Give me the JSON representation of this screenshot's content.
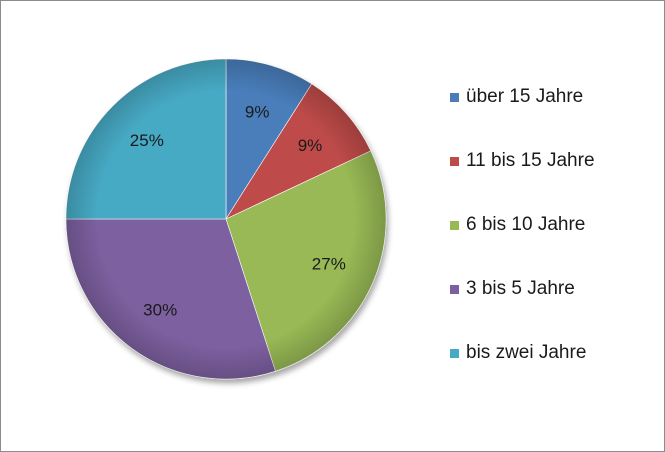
{
  "chart_data": {
    "type": "pie",
    "title": "",
    "start": "12 o'clock",
    "direction": "clockwise",
    "legend_position": "right",
    "slices": [
      {
        "label": "über 15 Jahre",
        "value": 9,
        "value_label": "9%",
        "color": "#4a7ebb"
      },
      {
        "label": "11 bis 15 Jahre",
        "value": 9,
        "value_label": "9%",
        "color": "#be4b48"
      },
      {
        "label": "6 bis 10 Jahre",
        "value": 27,
        "value_label": "27%",
        "color": "#98b954"
      },
      {
        "label": "3 bis 5 Jahre",
        "value": 30,
        "value_label": "30%",
        "color": "#7d60a0"
      },
      {
        "label": "bis zwei Jahre",
        "value": 25,
        "value_label": "25%",
        "color": "#46aac5"
      }
    ]
  }
}
